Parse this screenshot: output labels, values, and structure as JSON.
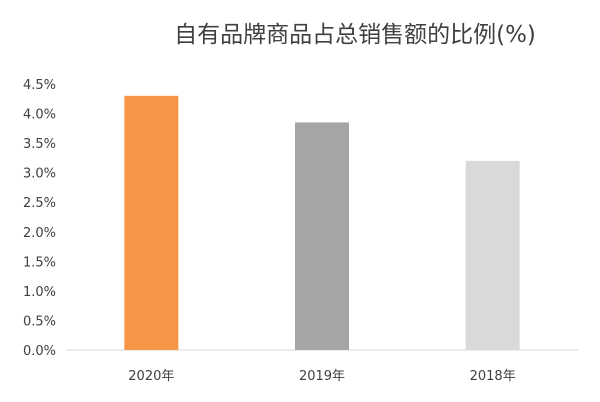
{
  "chart_data": {
    "type": "bar",
    "title": "自有品牌商品占总销售额的比例(%)",
    "xlabel": "",
    "ylabel": "",
    "categories": [
      "2020年",
      "2019年",
      "2018年"
    ],
    "values": [
      4.3,
      3.85,
      3.2
    ],
    "value_format": "percent_one_decimal",
    "ylim": [
      0,
      4.5
    ],
    "yticks": [
      "0.0%",
      "0.5%",
      "1.0%",
      "1.5%",
      "2.0%",
      "2.5%",
      "3.0%",
      "3.5%",
      "4.0%",
      "4.5%"
    ],
    "bar_colors": [
      "#F79646",
      "#A5A5A5",
      "#D9D9D9"
    ],
    "grid": false,
    "legend": "none"
  }
}
